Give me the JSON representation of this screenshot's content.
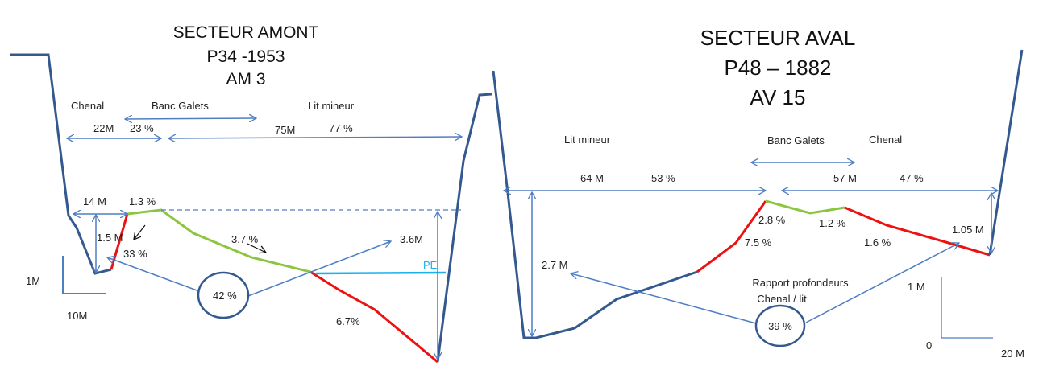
{
  "left": {
    "title": [
      "SECTEUR AMONT",
      "P34 -1953",
      "AM 3"
    ],
    "zones": {
      "chenal": "Chenal",
      "banc": "Banc Galets",
      "lit": "Lit mineur"
    },
    "chenal_width": "22M",
    "chenal_pct": "23 %",
    "lit_width": "75M",
    "lit_pct": "77 %",
    "w14": "14 M",
    "slope1": "1.3 %",
    "depth1": "1.5 M",
    "slope2": "33 %",
    "slope3": "3.7 %",
    "depth2": "3.6M",
    "pe": "PE",
    "ratio": "42 %",
    "slope4": "6.7%",
    "scale_v": "1M",
    "scale_h": "10M"
  },
  "right": {
    "title": [
      "SECTEUR AVAL",
      "P48 – 1882",
      "AV 15"
    ],
    "zones": {
      "lit": "Lit mineur",
      "banc": "Banc Galets",
      "chenal": "Chenal"
    },
    "lit_width": "64 M",
    "lit_pct": "53 %",
    "chenal_width": "57 M",
    "chenal_pct": "47 %",
    "slope1": "2.8 %",
    "slope2": "1.2 %",
    "slope3": "7.5 %",
    "slope4": "1.6 %",
    "depth1": "1.05 M",
    "depth2": "2.7 M",
    "ratio_label": [
      "Rapport profondeurs",
      "Chenal / lit"
    ],
    "ratio": "39 %",
    "scale_v": "1 M",
    "scale_o": "0",
    "scale_h": "20 M"
  },
  "colors": {
    "profile": "#34598f",
    "arrows": "#4f7ec2",
    "erosion": "#ee1111",
    "deposit": "#8cc63f",
    "pe": "#1ab0ee"
  }
}
